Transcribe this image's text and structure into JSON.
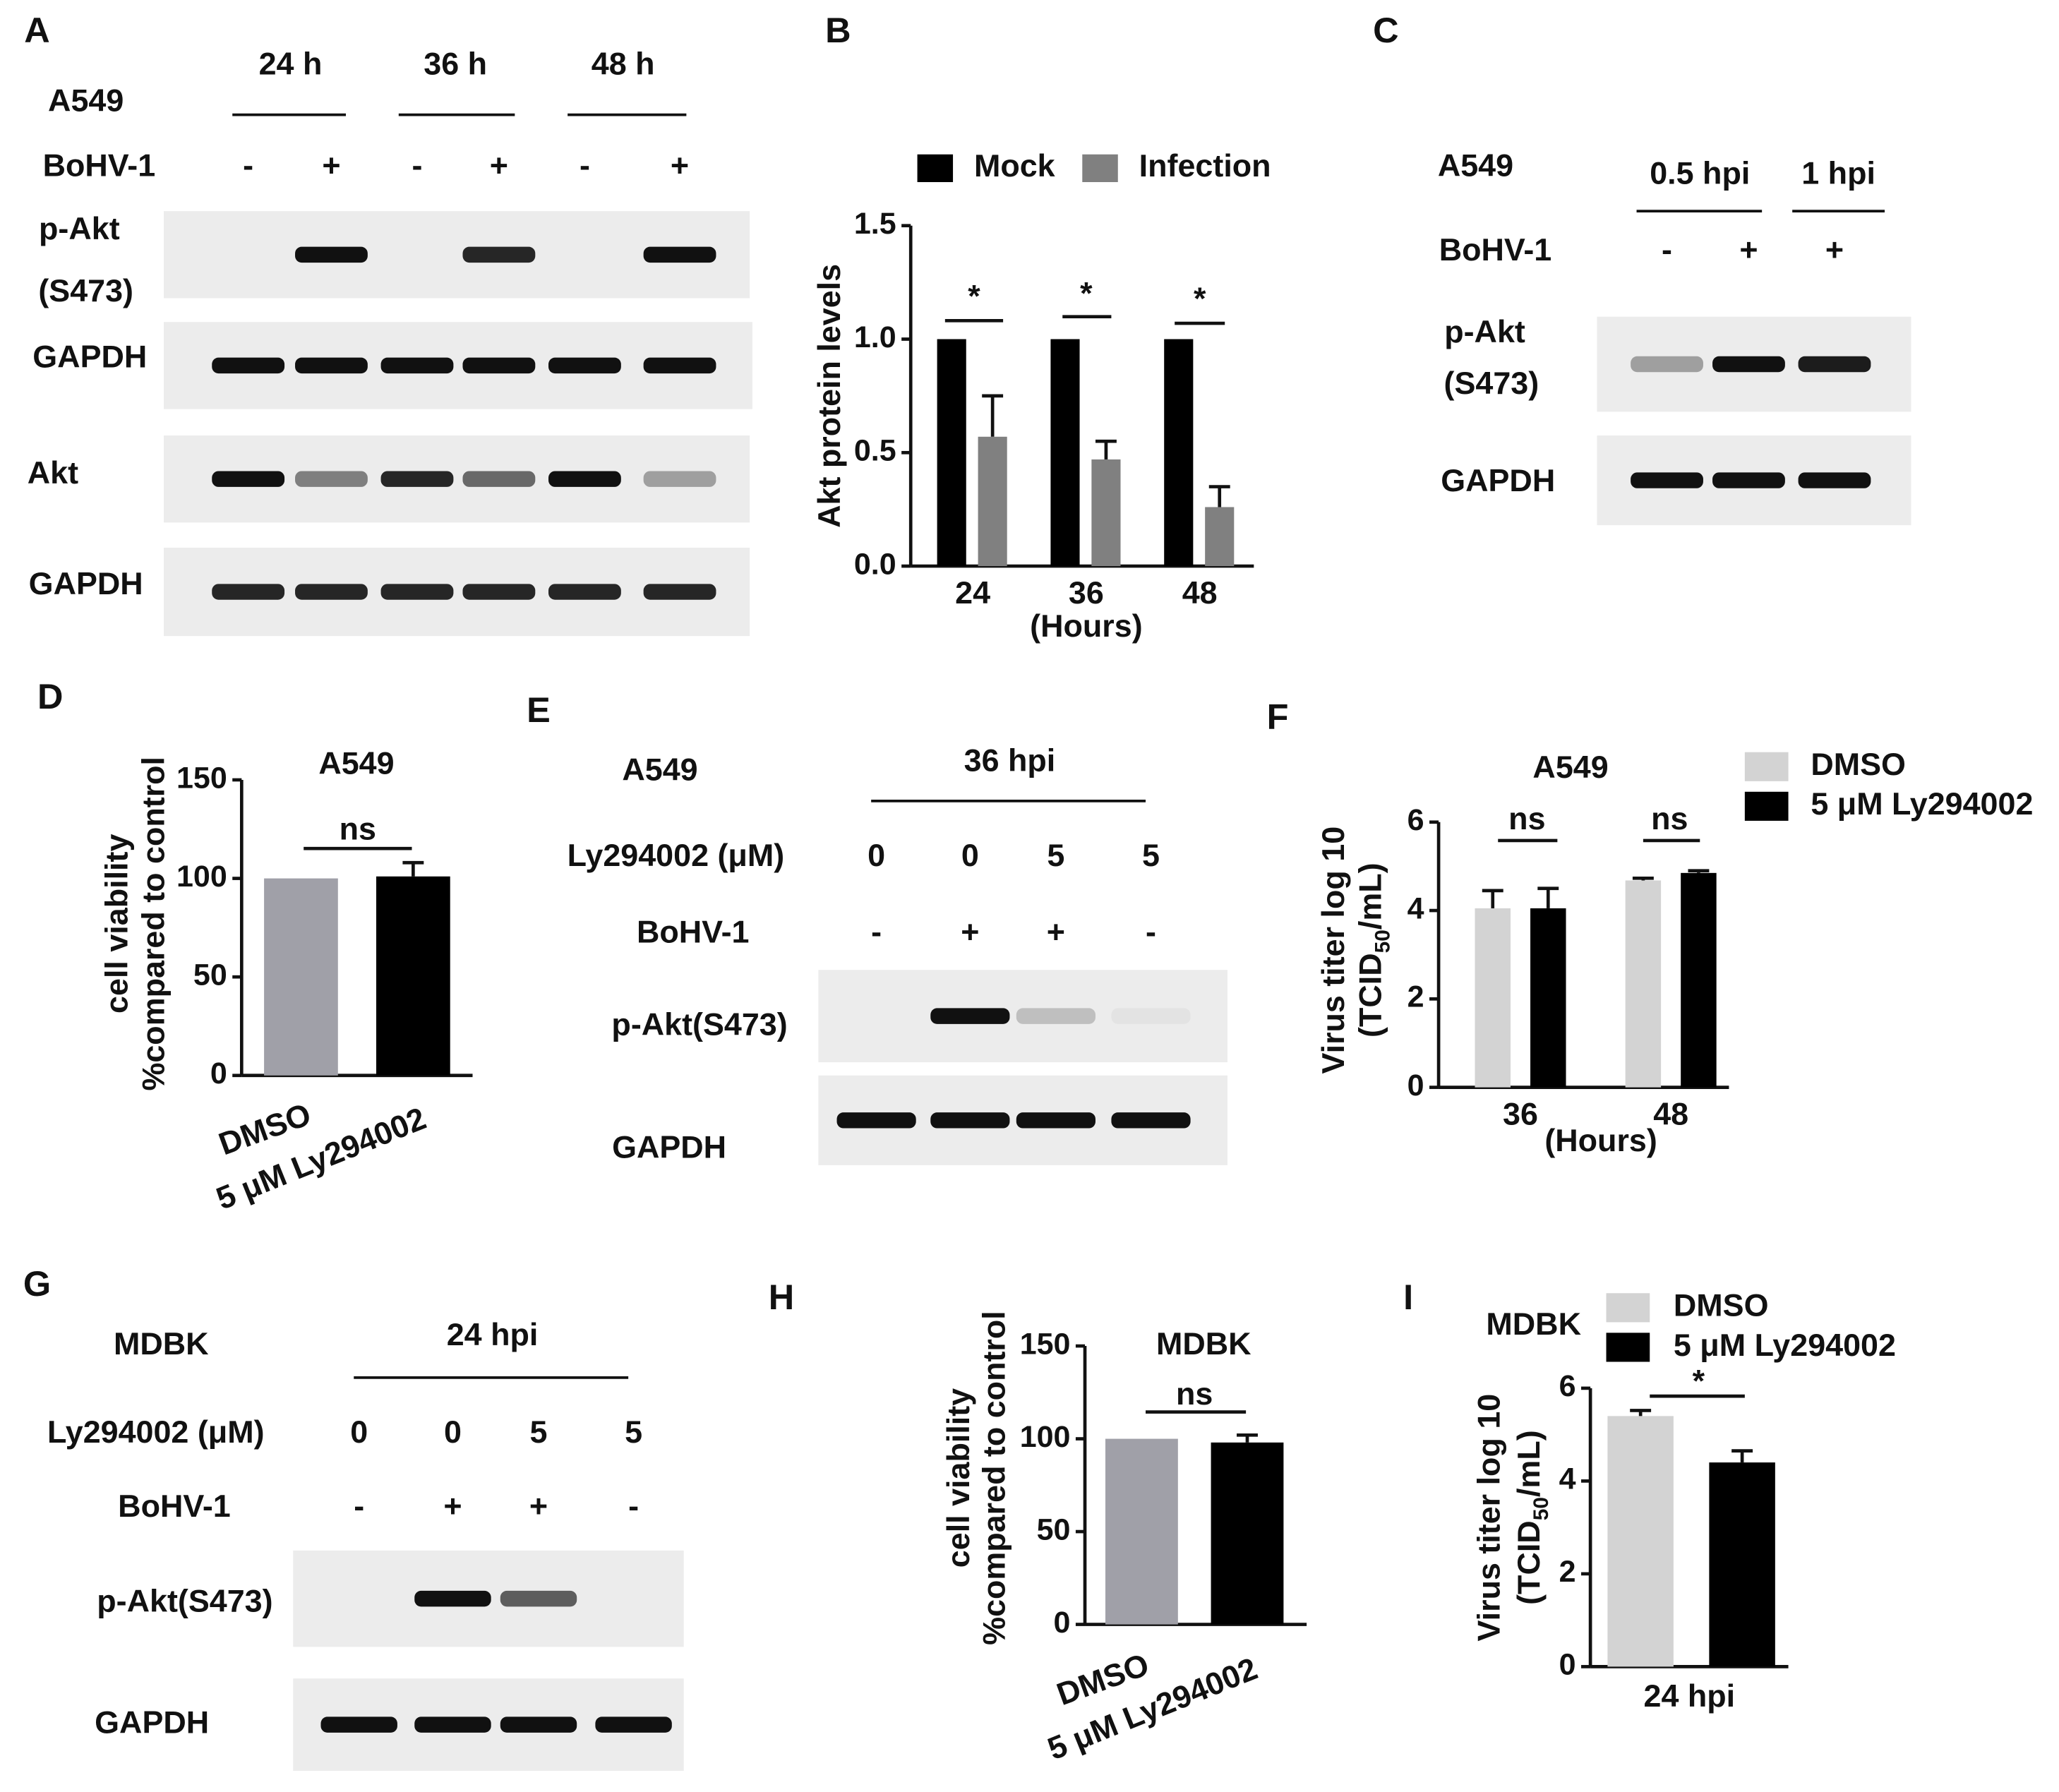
{
  "blots": [
    {
      "panel": "A",
      "cell": "A549",
      "groups": [
        "24 h",
        "36 h",
        "48 h"
      ],
      "treatments": [
        {
          "label": "BoHV-1",
          "values": [
            "-",
            "+",
            "-",
            "+",
            "-",
            "+"
          ]
        }
      ],
      "rows": [
        {
          "label": [
            "p-Akt",
            "(S473)"
          ]
        },
        {
          "label": [
            "GAPDH"
          ]
        },
        {
          "label": [
            "Akt"
          ]
        },
        {
          "label": [
            "GAPDH"
          ]
        }
      ]
    },
    {
      "panel": "C",
      "cell": "A549",
      "groups": [
        "0.5 hpi",
        "1 hpi"
      ],
      "treatments": [
        {
          "label": "BoHV-1",
          "values": [
            "-",
            "+",
            "+"
          ]
        }
      ],
      "rows": [
        {
          "label": [
            "p-Akt",
            "(S473)"
          ]
        },
        {
          "label": [
            "GAPDH"
          ]
        }
      ]
    },
    {
      "panel": "E",
      "cell": "A549",
      "groups": [
        "36 hpi"
      ],
      "treatments": [
        {
          "label": "Ly294002 (μM)",
          "values": [
            "0",
            "0",
            "5",
            "5"
          ]
        },
        {
          "label": "BoHV-1",
          "values": [
            "-",
            "+",
            "+",
            "-"
          ]
        }
      ],
      "rows": [
        {
          "label": [
            "p-Akt(S473)"
          ]
        },
        {
          "label": [
            "GAPDH"
          ]
        }
      ]
    },
    {
      "panel": "G",
      "cell": "MDBK",
      "groups": [
        "24 hpi"
      ],
      "treatments": [
        {
          "label": "Ly294002 (μM)",
          "values": [
            "0",
            "0",
            "5",
            "5"
          ]
        },
        {
          "label": "BoHV-1",
          "values": [
            "-",
            "+",
            "+",
            "-"
          ]
        }
      ],
      "rows": [
        {
          "label": [
            "p-Akt(S473)"
          ]
        },
        {
          "label": [
            "GAPDH"
          ]
        }
      ]
    }
  ],
  "chart_data": [
    {
      "panel": "B",
      "type": "bar",
      "categories": [
        "24",
        "36",
        "48"
      ],
      "xlabel": "(Hours)",
      "ylabel": [
        "Akt protein levels"
      ],
      "series": [
        {
          "name": "Mock",
          "color": "#000000",
          "values": [
            1,
            1,
            1
          ]
        },
        {
          "name": "Infection",
          "color": "#808080",
          "values": [
            0.57,
            0.47,
            0.26
          ],
          "errors": [
            0.18,
            0.08,
            0.09
          ]
        }
      ],
      "ylim": [
        0,
        1.5
      ],
      "yticks": [
        {
          "value": 0,
          "label": "0.0"
        },
        {
          "value": 0.5,
          "label": "0.5"
        },
        {
          "value": 1,
          "label": "1.0"
        },
        {
          "value": 1.5,
          "label": "1.5"
        }
      ],
      "annotations": [
        "*",
        "*",
        "*"
      ]
    },
    {
      "panel": "D",
      "type": "bar",
      "title": "A549",
      "categories": [
        "DMSO",
        "5 μM Ly294002"
      ],
      "values": [
        100,
        101
      ],
      "errors": [
        null,
        7
      ],
      "colors": [
        "#a0a0a8",
        "#000000"
      ],
      "ylabel": [
        "cell viability",
        "%compared to control"
      ],
      "ylim": [
        0,
        150
      ],
      "yticks": [
        0,
        50,
        100,
        150
      ],
      "annotations": [
        "ns"
      ]
    },
    {
      "panel": "F",
      "type": "bar",
      "title": "A549",
      "categories": [
        "36",
        "48"
      ],
      "xlabel": "(Hours)",
      "ylabel": [
        "Virus titer log 10"
      ],
      "ylabel_units": [
        "(TCID",
        "50",
        "/mL)"
      ],
      "series": [
        {
          "name": "DMSO",
          "color": "#d3d3d3",
          "values": [
            4.05,
            4.68
          ],
          "errors": [
            0.4,
            0.05
          ]
        },
        {
          "name": "5 μM Ly294002",
          "color": "#000000",
          "values": [
            4.05,
            4.85
          ],
          "errors": [
            0.45,
            0.05
          ]
        }
      ],
      "ylim": [
        0,
        6
      ],
      "yticks": [
        0,
        2,
        4,
        6
      ],
      "annotations": [
        "ns",
        "ns"
      ]
    },
    {
      "panel": "H",
      "type": "bar",
      "title": "MDBK",
      "categories": [
        "DMSO",
        "5 μM Ly294002"
      ],
      "values": [
        100,
        98
      ],
      "errors": [
        null,
        4
      ],
      "colors": [
        "#a0a0a8",
        "#000000"
      ],
      "ylabel": [
        "cell viability",
        "%compared to control"
      ],
      "ylim": [
        0,
        150
      ],
      "yticks": [
        0,
        50,
        100,
        150
      ],
      "annotations": [
        "ns"
      ]
    },
    {
      "panel": "I",
      "type": "bar",
      "title": "MDBK",
      "categories": [
        "24 hpi"
      ],
      "ylabel": [
        "Virus titer log 10"
      ],
      "ylabel_units": [
        "(TCID",
        "50",
        "/mL)"
      ],
      "series": [
        {
          "name": "DMSO",
          "color": "#d3d3d3",
          "values": [
            5.4
          ],
          "errors": [
            0.12
          ]
        },
        {
          "name": "5 μM Ly294002",
          "color": "#000000",
          "values": [
            4.4
          ],
          "errors": [
            0.25
          ]
        }
      ],
      "ylim": [
        0,
        6
      ],
      "yticks": [
        0,
        2,
        4,
        6
      ],
      "annotations": [
        "*"
      ]
    }
  ]
}
